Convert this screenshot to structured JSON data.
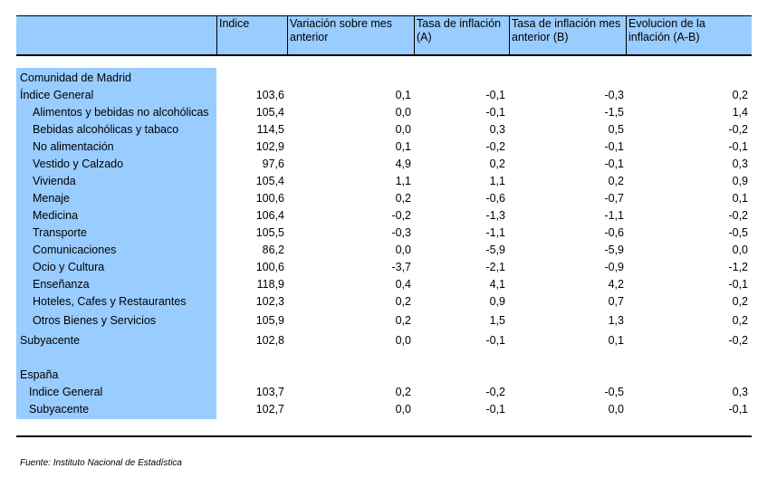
{
  "header": {
    "col0": "",
    "col1": "Indice",
    "col2": "Variación sobre mes anterior",
    "col3": "Tasa de inflación (A)",
    "col4": "Tasa de inflación mes anterior (B)",
    "col5": "Evolucion de la inflación (A-B)"
  },
  "section_madrid": "Comunidad de Madrid",
  "rows_madrid": [
    {
      "label": "Índice General",
      "indice": "103,6",
      "variacion": "0,1",
      "tasa_a": "-0,1",
      "tasa_b": "-0,3",
      "evolucion": "0,2"
    },
    {
      "label": "Alimentos y bebidas no alcohólicas",
      "indice": "105,4",
      "variacion": "0,0",
      "tasa_a": "-0,1",
      "tasa_b": "-1,5",
      "evolucion": "1,4"
    },
    {
      "label": "Bebidas alcohólicas y tabaco",
      "indice": "114,5",
      "variacion": "0,0",
      "tasa_a": "0,3",
      "tasa_b": "0,5",
      "evolucion": "-0,2"
    },
    {
      "label": "No alimentación",
      "indice": "102,9",
      "variacion": "0,1",
      "tasa_a": "-0,2",
      "tasa_b": "-0,1",
      "evolucion": "-0,1"
    },
    {
      "label": "Vestido y Calzado",
      "indice": "97,6",
      "variacion": "4,9",
      "tasa_a": "0,2",
      "tasa_b": "-0,1",
      "evolucion": "0,3"
    },
    {
      "label": "Vivienda",
      "indice": "105,4",
      "variacion": "1,1",
      "tasa_a": "1,1",
      "tasa_b": "0,2",
      "evolucion": "0,9"
    },
    {
      "label": "Menaje",
      "indice": "100,6",
      "variacion": "0,2",
      "tasa_a": "-0,6",
      "tasa_b": "-0,7",
      "evolucion": "0,1"
    },
    {
      "label": "Medicina",
      "indice": "106,4",
      "variacion": "-0,2",
      "tasa_a": "-1,3",
      "tasa_b": "-1,1",
      "evolucion": "-0,2"
    },
    {
      "label": "Transporte",
      "indice": "105,5",
      "variacion": "-0,3",
      "tasa_a": "-1,1",
      "tasa_b": "-0,6",
      "evolucion": "-0,5"
    },
    {
      "label": "Comunicaciones",
      "indice": "86,2",
      "variacion": "0,0",
      "tasa_a": "-5,9",
      "tasa_b": "-5,9",
      "evolucion": "0,0"
    },
    {
      "label": "Ocio y Cultura",
      "indice": "100,6",
      "variacion": "-3,7",
      "tasa_a": "-2,1",
      "tasa_b": "-0,9",
      "evolucion": "-1,2"
    },
    {
      "label": "Enseñanza",
      "indice": "118,9",
      "variacion": "0,4",
      "tasa_a": "4,1",
      "tasa_b": "4,2",
      "evolucion": "-0,1"
    },
    {
      "label": "Hoteles, Cafes y Restaurantes",
      "indice": "102,3",
      "variacion": "0,2",
      "tasa_a": "0,9",
      "tasa_b": "0,7",
      "evolucion": "0,2"
    },
    {
      "label": "Otros Bienes y Servicios",
      "indice": "105,9",
      "variacion": "0,2",
      "tasa_a": "1,5",
      "tasa_b": "1,3",
      "evolucion": "0,2"
    },
    {
      "label": "Subyacente",
      "indice": "102,8",
      "variacion": "0,0",
      "tasa_a": "-0,1",
      "tasa_b": "0,1",
      "evolucion": "-0,2"
    }
  ],
  "section_espana": "España",
  "rows_espana": [
    {
      "label": "Indice General",
      "indice": "103,7",
      "variacion": "0,2",
      "tasa_a": "-0,2",
      "tasa_b": "-0,5",
      "evolucion": "0,3"
    },
    {
      "label": "Subyacente",
      "indice": "102,7",
      "variacion": "0,0",
      "tasa_a": "-0,1",
      "tasa_b": "0,0",
      "evolucion": "-0,1"
    }
  ],
  "source": "Fuente: Instituto Nacional de Estadística",
  "colors": {
    "header_bg": "#99ccff",
    "label_bg": "#99ccff"
  }
}
